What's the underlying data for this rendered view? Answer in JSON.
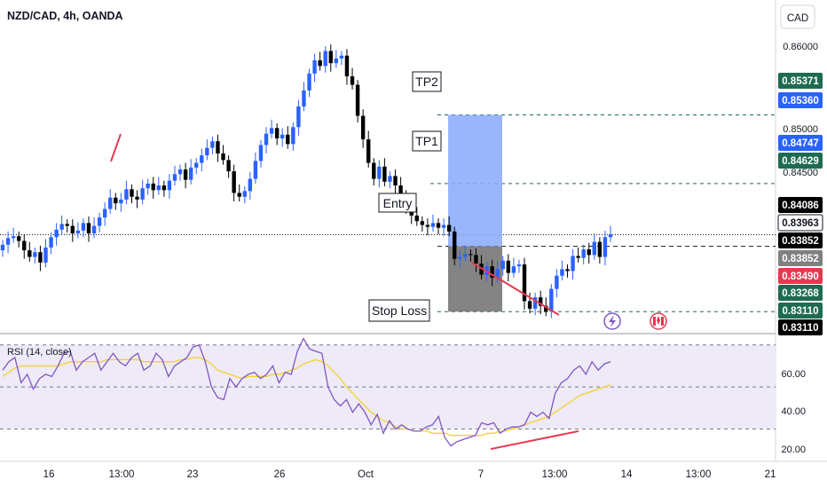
{
  "header": {
    "symbol": "NZD/CAD, 4h, OANDA",
    "currency": "CAD"
  },
  "colors": {
    "up": "#2962ff",
    "down": "#000000",
    "grid_dash": "#1e6b52",
    "target_zone": "#87a8fb",
    "stop_zone": "#6f6f6f",
    "rsi_line": "#7e57c2",
    "rsi_ma": "#f2d22a",
    "rsi_band": "#efeaf8",
    "divergence": "#e53950"
  },
  "chart_data": [
    {
      "type": "candlestick",
      "title": "NZD/CAD, 4h, OANDA",
      "ylim": [
        0.8311,
        0.8611
      ],
      "y_ticks": [
        "0.86000",
        "0.85000",
        "0.84500"
      ],
      "x_tick_labels": [
        "16",
        "13:00",
        "23",
        "26",
        "Oct",
        "7",
        "13:00",
        "14",
        "13:00",
        "21"
      ],
      "price_labels": [
        {
          "value": "0.85371",
          "style": "green"
        },
        {
          "value": "0.85360",
          "style": "blue"
        },
        {
          "value": "0.84747",
          "style": "blue"
        },
        {
          "value": "0.84629",
          "style": "green"
        },
        {
          "value": "0.84086",
          "style": "black"
        },
        {
          "value": "0.83963",
          "style": "outline"
        },
        {
          "value": "0.83852",
          "style": "black"
        },
        {
          "value": "0.83852",
          "style": "grey"
        },
        {
          "value": "0.83490",
          "style": "red"
        },
        {
          "value": "0.83268",
          "style": "green"
        },
        {
          "value": "0.83110",
          "style": "green"
        },
        {
          "value": "0.83110",
          "style": "black"
        }
      ],
      "levels": {
        "tp2": 0.8536,
        "tp1": 0.8463,
        "entry": 0.83963,
        "stop": 0.83268,
        "last": 0.84086
      },
      "annotations": {
        "tp2": "TP2",
        "tp1": "TP1",
        "entry": "Entry",
        "stop": "Stop Loss"
      },
      "close_series": [
        0.8398,
        0.8405,
        0.8407,
        0.8402,
        0.8392,
        0.8385,
        0.839,
        0.8379,
        0.8395,
        0.8406,
        0.8414,
        0.842,
        0.8418,
        0.841,
        0.8413,
        0.8421,
        0.841,
        0.8418,
        0.8427,
        0.8436,
        0.8448,
        0.8442,
        0.8446,
        0.8457,
        0.8449,
        0.8446,
        0.8458,
        0.8463,
        0.8456,
        0.8461,
        0.8456,
        0.8466,
        0.8473,
        0.8478,
        0.8467,
        0.848,
        0.8485,
        0.8493,
        0.8501,
        0.8508,
        0.8495,
        0.8488,
        0.8476,
        0.8453,
        0.8449,
        0.8455,
        0.8468,
        0.8487,
        0.8504,
        0.8516,
        0.8522,
        0.8511,
        0.8515,
        0.8505,
        0.8523,
        0.8545,
        0.8562,
        0.858,
        0.8594,
        0.8588,
        0.8604,
        0.8591,
        0.8596,
        0.8599,
        0.8577,
        0.8568,
        0.8535,
        0.851,
        0.8485,
        0.8468,
        0.8481,
        0.8465,
        0.8471,
        0.8461,
        0.8451,
        0.8438,
        0.8429,
        0.8423,
        0.8419,
        0.8417,
        0.8421,
        0.8416,
        0.8419,
        0.8412,
        0.8383,
        0.8385,
        0.8388,
        0.8387,
        0.8378,
        0.8366,
        0.8375,
        0.8363,
        0.8372,
        0.8381,
        0.8368,
        0.8375,
        0.8377,
        0.8338,
        0.833,
        0.8342,
        0.8333,
        0.8327,
        0.8351,
        0.8365,
        0.8372,
        0.837,
        0.8386,
        0.8384,
        0.8393,
        0.8387,
        0.8401,
        0.8385,
        0.8406,
        0.8409
      ]
    },
    {
      "type": "line",
      "title": "RSI (14, close)",
      "ylim": [
        18,
        72
      ],
      "y_ticks": [
        "60.00",
        "40.00",
        "20.00"
      ],
      "bands": [
        70,
        50,
        30
      ],
      "series": [
        {
          "name": "RSI",
          "values": [
            58,
            62,
            64,
            52,
            56,
            49,
            54,
            56,
            55,
            60,
            66,
            67,
            58,
            62,
            64,
            66,
            58,
            62,
            66,
            62,
            60,
            64,
            66,
            58,
            60,
            66,
            63,
            55,
            60,
            62,
            64,
            69,
            70,
            62,
            50,
            45,
            44,
            54,
            50,
            54,
            56,
            57,
            54,
            56,
            60,
            52,
            57,
            56,
            67,
            73,
            68,
            67,
            66,
            50,
            44,
            41,
            44,
            38,
            42,
            38,
            32,
            37,
            28,
            34,
            30,
            32,
            30,
            29,
            29,
            31,
            32,
            36,
            26,
            22,
            24,
            25,
            26,
            27,
            33,
            32,
            33,
            28,
            30,
            31,
            31,
            32,
            38,
            36,
            38,
            35,
            47,
            52,
            54,
            58,
            60,
            56,
            62,
            58,
            61,
            62
          ]
        },
        {
          "name": "MA",
          "values": [
            55,
            57,
            59,
            60,
            60,
            60,
            60,
            60,
            60,
            60,
            61,
            62,
            62,
            62,
            62,
            62,
            62,
            63,
            63,
            63,
            63,
            63,
            63,
            62,
            62,
            62,
            62,
            62,
            62,
            63,
            63,
            64,
            64,
            63,
            61,
            58,
            57,
            56,
            55,
            54,
            55,
            55,
            55,
            55,
            56,
            56,
            57,
            58,
            59,
            61,
            62,
            63,
            62,
            60,
            57,
            54,
            50,
            47,
            44,
            41,
            38,
            36,
            34,
            33,
            31,
            30,
            30,
            29,
            29,
            29,
            28,
            28,
            28,
            27,
            27,
            27,
            27,
            27,
            27,
            28,
            28,
            29,
            29,
            30,
            31,
            32,
            33,
            34,
            35,
            36,
            38,
            40,
            42,
            44,
            46,
            47,
            48,
            49,
            50,
            51
          ]
        }
      ]
    }
  ]
}
